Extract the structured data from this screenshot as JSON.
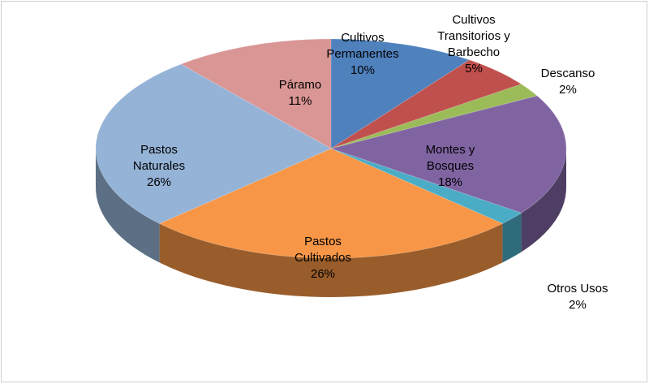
{
  "chart_data": {
    "type": "pie",
    "categories": [
      "Cultivos Permanentes",
      "Cultivos Transitorios y Barbecho",
      "Descanso",
      "Montes y Bosques",
      "Otros Usos",
      "Pastos Cultivados",
      "Pastos Naturales",
      "Páramo"
    ],
    "values": [
      10,
      5,
      2,
      18,
      2,
      26,
      26,
      11
    ],
    "value_labels": [
      "10%",
      "5%",
      "2%",
      "18%",
      "2%",
      "26%",
      "26%",
      "11%"
    ],
    "colors": [
      "#4f81bd",
      "#c0504d",
      "#9bbb59",
      "#8064a2",
      "#4bacc6",
      "#f79646",
      "#95b3d7",
      "#d99694"
    ]
  }
}
